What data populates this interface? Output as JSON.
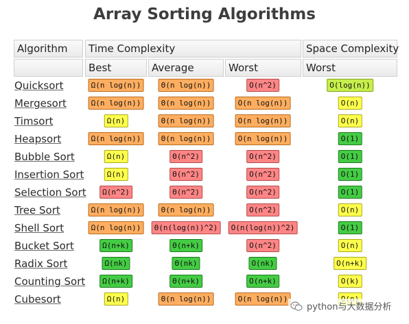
{
  "title": "Array Sorting Algorithms",
  "headers": {
    "algorithm": "Algorithm",
    "time_complexity": "Time Complexity",
    "space_complexity": "Space Complexity",
    "best": "Best",
    "average": "Average",
    "worst": "Worst",
    "space_worst": "Worst"
  },
  "rows": [
    {
      "name": "Quicksort",
      "best": {
        "text": "Ω(n log(n))",
        "color": "orange"
      },
      "average": {
        "text": "Θ(n log(n))",
        "color": "orange"
      },
      "worst": {
        "text": "O(n^2)",
        "color": "red"
      },
      "space": {
        "text": "O(log(n))",
        "color": "lime"
      }
    },
    {
      "name": "Mergesort",
      "best": {
        "text": "Ω(n log(n))",
        "color": "orange"
      },
      "average": {
        "text": "Θ(n log(n))",
        "color": "orange"
      },
      "worst": {
        "text": "O(n log(n))",
        "color": "orange"
      },
      "space": {
        "text": "O(n)",
        "color": "yellow"
      }
    },
    {
      "name": "Timsort",
      "best": {
        "text": "Ω(n)",
        "color": "yellow"
      },
      "average": {
        "text": "Θ(n log(n))",
        "color": "orange"
      },
      "worst": {
        "text": "O(n log(n))",
        "color": "orange"
      },
      "space": {
        "text": "O(n)",
        "color": "yellow"
      }
    },
    {
      "name": "Heapsort",
      "best": {
        "text": "Ω(n log(n))",
        "color": "orange"
      },
      "average": {
        "text": "Θ(n log(n))",
        "color": "orange"
      },
      "worst": {
        "text": "O(n log(n))",
        "color": "orange"
      },
      "space": {
        "text": "O(1)",
        "color": "green"
      }
    },
    {
      "name": "Bubble Sort",
      "best": {
        "text": "Ω(n)",
        "color": "yellow"
      },
      "average": {
        "text": "Θ(n^2)",
        "color": "red"
      },
      "worst": {
        "text": "O(n^2)",
        "color": "red"
      },
      "space": {
        "text": "O(1)",
        "color": "green"
      }
    },
    {
      "name": "Insertion Sort",
      "best": {
        "text": "Ω(n)",
        "color": "yellow"
      },
      "average": {
        "text": "Θ(n^2)",
        "color": "red"
      },
      "worst": {
        "text": "O(n^2)",
        "color": "red"
      },
      "space": {
        "text": "O(1)",
        "color": "green"
      }
    },
    {
      "name": "Selection Sort",
      "best": {
        "text": "Ω(n^2)",
        "color": "red"
      },
      "average": {
        "text": "Θ(n^2)",
        "color": "red"
      },
      "worst": {
        "text": "O(n^2)",
        "color": "red"
      },
      "space": {
        "text": "O(1)",
        "color": "green"
      }
    },
    {
      "name": "Tree Sort",
      "best": {
        "text": "Ω(n log(n))",
        "color": "orange"
      },
      "average": {
        "text": "Θ(n log(n))",
        "color": "orange"
      },
      "worst": {
        "text": "O(n^2)",
        "color": "red"
      },
      "space": {
        "text": "O(n)",
        "color": "yellow"
      }
    },
    {
      "name": "Shell Sort",
      "best": {
        "text": "Ω(n log(n))",
        "color": "orange"
      },
      "average": {
        "text": "Θ(n(log(n))^2)",
        "color": "red"
      },
      "worst": {
        "text": "O(n(log(n))^2)",
        "color": "red"
      },
      "space": {
        "text": "O(1)",
        "color": "green"
      }
    },
    {
      "name": "Bucket Sort",
      "best": {
        "text": "Ω(n+k)",
        "color": "green"
      },
      "average": {
        "text": "Θ(n+k)",
        "color": "green"
      },
      "worst": {
        "text": "O(n^2)",
        "color": "red"
      },
      "space": {
        "text": "O(n)",
        "color": "yellow"
      }
    },
    {
      "name": "Radix Sort",
      "best": {
        "text": "Ω(nk)",
        "color": "green"
      },
      "average": {
        "text": "Θ(nk)",
        "color": "green"
      },
      "worst": {
        "text": "O(nk)",
        "color": "green"
      },
      "space": {
        "text": "O(n+k)",
        "color": "yellow"
      }
    },
    {
      "name": "Counting Sort",
      "best": {
        "text": "Ω(n+k)",
        "color": "green"
      },
      "average": {
        "text": "Θ(n+k)",
        "color": "green"
      },
      "worst": {
        "text": "O(n+k)",
        "color": "green"
      },
      "space": {
        "text": "O(k)",
        "color": "yellow"
      }
    },
    {
      "name": "Cubesort",
      "best": {
        "text": "Ω(n)",
        "color": "yellow"
      },
      "average": {
        "text": "Θ(n log(n))",
        "color": "orange"
      },
      "worst": {
        "text": "O(n log(n))",
        "color": "orange"
      },
      "space": {
        "text": "O(n)",
        "color": "yellow"
      }
    }
  ],
  "watermark": {
    "text": "python与大数据分析",
    "icon": "wechat-icon"
  }
}
